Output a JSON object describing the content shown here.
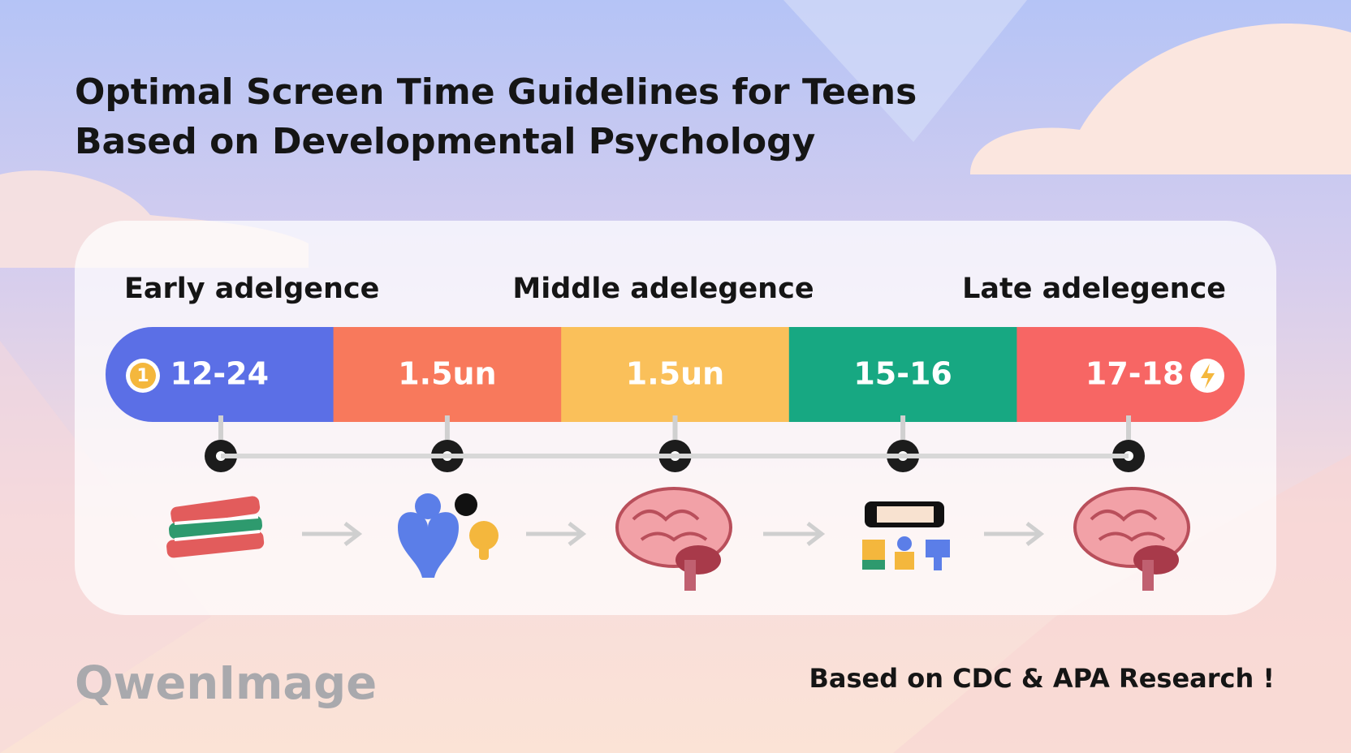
{
  "header": {
    "title": [
      "Optimal Screen Time Guidelines for Teens",
      "Based on Developmental Psychology"
    ]
  },
  "stages": [
    "Early adelgence",
    "Middle adelegence",
    "Late adelegence"
  ],
  "timeline": {
    "start_badge": "1",
    "segments": [
      "12-24",
      "1.5un",
      "1.5un",
      "15-16",
      "17-18"
    ]
  },
  "footer": {
    "watermark": "QwenImage",
    "source": "Based on CDC & APA Research !"
  }
}
